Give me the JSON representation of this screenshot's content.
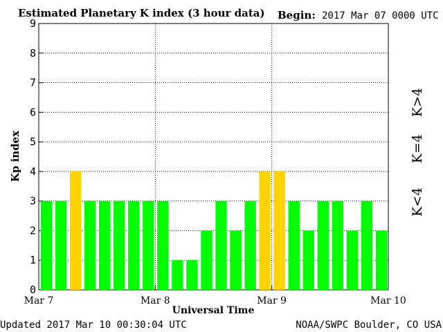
{
  "header": {
    "title": "Estimated Planetary K index (3 hour data)",
    "begin_label": "Begin:",
    "begin_value": "2017 Mar 07 0000 UTC"
  },
  "footer": {
    "updated": "Updated 2017 Mar 10 00:30:04 UTC",
    "source": "NOAA/SWPC Boulder, CO USA"
  },
  "legend": {
    "high": "K>4",
    "equal": "K=4",
    "low": "K<4"
  },
  "colors": {
    "low": "#00ff00",
    "equal": "#ffd300",
    "high": "#ff2200"
  },
  "chart_data": {
    "type": "bar",
    "title": "Estimated Planetary K index (3 hour data)",
    "xlabel": "Universal Time",
    "ylabel": "Kp index",
    "ylim": [
      0,
      9
    ],
    "yticks": [
      "0",
      "1",
      "2",
      "3",
      "4",
      "5",
      "6",
      "7",
      "8",
      "9"
    ],
    "xticks": [
      "Mar 7",
      "Mar 8",
      "Mar 9",
      "Mar 10"
    ],
    "grid": true,
    "legend_position": "right",
    "values": [
      3,
      3,
      4,
      3,
      3,
      3,
      3,
      3,
      3,
      1,
      1,
      2,
      3,
      2,
      3,
      4,
      4,
      3,
      2,
      3,
      3,
      2,
      3,
      2
    ]
  }
}
